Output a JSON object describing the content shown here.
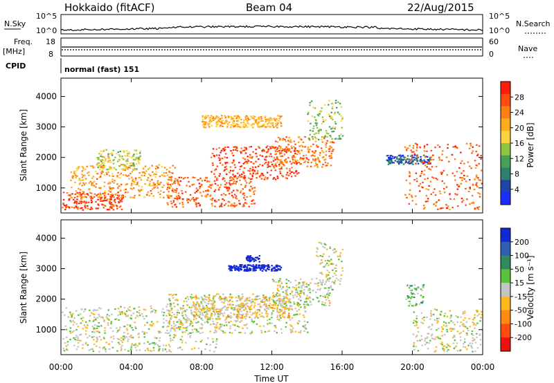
{
  "header": {
    "station": "Hokkaido (fitACF)",
    "beam": "Beam 04",
    "date": "22/Aug/2015"
  },
  "strip_panels": {
    "nsky_label": "N.Sky",
    "nsky_ticks": [
      "10^5",
      "10^0"
    ],
    "nsearch_label": "N.Search",
    "nsearch_ticks": [
      "10^5",
      "10^0"
    ],
    "freq_label_line1": "Freq.",
    "freq_label_line2": "[MHz]",
    "freq_ticks": [
      "18",
      "8"
    ],
    "nave_label": "Nave",
    "nave_ticks": [
      "60",
      "0"
    ],
    "cpid_label": "CPID",
    "cpid_text": "normal (fast) 151"
  },
  "axes": {
    "ylabel": "Slant Range [km]",
    "yticks": [
      "1000",
      "2000",
      "3000",
      "4000"
    ],
    "xlabel": "Time UT",
    "xticks": [
      "00:00",
      "04:00",
      "08:00",
      "12:00",
      "16:00",
      "20:00",
      "00:00"
    ]
  },
  "power_colorbar": {
    "label": "Power [dB]",
    "ticks": [
      "4",
      "8",
      "12",
      "16",
      "20",
      "24",
      "28"
    ],
    "colors": [
      "#1a2cff",
      "#2244aa",
      "#2f7f6e",
      "#46a05a",
      "#8cc63f",
      "#ffd23f",
      "#ffaa1a",
      "#ff7e14",
      "#ff4c10",
      "#ff1a0a"
    ]
  },
  "velocity_colorbar": {
    "label": "Velocity [m s⁻¹]",
    "ticks": [
      "200",
      "100",
      "50",
      "15",
      "-15",
      "-50",
      "-100",
      "-200"
    ],
    "colors": [
      "#1228d4",
      "#2f5fb5",
      "#2f8a60",
      "#59c23a",
      "#c4c4c4",
      "#ffb81c",
      "#ff8a12",
      "#ff4e0d",
      "#f01010"
    ]
  },
  "chart_data": [
    {
      "type": "heatmap",
      "title": "Power",
      "xlabel": "Time UT",
      "ylabel": "Slant Range [km]",
      "x_range_hours": [
        0,
        24
      ],
      "ylim": [
        180,
        4600
      ],
      "colorbar": {
        "label": "Power [dB]",
        "range": [
          0,
          32
        ]
      },
      "regions": [
        {
          "t0": 0.0,
          "t1": 3.5,
          "r0": 300,
          "r1": 900,
          "value": 28
        },
        {
          "t0": 0.5,
          "t1": 6.5,
          "r0": 700,
          "r1": 1800,
          "value": 22
        },
        {
          "t0": 6.0,
          "t1": 11.0,
          "r0": 400,
          "r1": 1400,
          "value": 26
        },
        {
          "t0": 8.5,
          "t1": 13.5,
          "r0": 1300,
          "r1": 2400,
          "value": 28
        },
        {
          "t0": 12.0,
          "t1": 15.5,
          "r0": 1700,
          "r1": 2700,
          "value": 24
        },
        {
          "t0": 14.0,
          "t1": 16.0,
          "r0": 2600,
          "r1": 3900,
          "value": 14
        },
        {
          "t0": 8.0,
          "t1": 12.5,
          "r0": 3000,
          "r1": 3400,
          "value": 20
        },
        {
          "t0": 2.0,
          "t1": 4.5,
          "r0": 1600,
          "r1": 2300,
          "value": 16
        },
        {
          "t0": 18.5,
          "t1": 21.0,
          "r0": 1800,
          "r1": 2100,
          "value": 6
        },
        {
          "t0": 19.5,
          "t1": 24.0,
          "r0": 300,
          "r1": 2500,
          "value": 26
        }
      ]
    },
    {
      "type": "heatmap",
      "title": "Velocity",
      "xlabel": "Time UT",
      "ylabel": "Slant Range [km]",
      "x_range_hours": [
        0,
        24
      ],
      "ylim": [
        180,
        4600
      ],
      "colorbar": {
        "label": "Velocity [m s⁻¹]",
        "range": [
          -200,
          200
        ]
      },
      "regions": [
        {
          "t0": 0.0,
          "t1": 9.0,
          "r0": 300,
          "r1": 1800,
          "value": 0
        },
        {
          "t0": 6.0,
          "t1": 14.0,
          "r0": 900,
          "r1": 2200,
          "value": 0
        },
        {
          "t0": 12.0,
          "t1": 15.5,
          "r0": 1800,
          "r1": 2700,
          "value": 0
        },
        {
          "t0": 14.5,
          "t1": 16.0,
          "r0": 2500,
          "r1": 3900,
          "value": 0
        },
        {
          "t0": 9.5,
          "t1": 12.5,
          "r0": 2950,
          "r1": 3150,
          "value": 250
        },
        {
          "t0": 10.5,
          "t1": 11.3,
          "r0": 3250,
          "r1": 3450,
          "value": 250
        },
        {
          "t0": 19.6,
          "t1": 20.6,
          "r0": 1800,
          "r1": 2500,
          "value": 40
        },
        {
          "t0": 20.0,
          "t1": 24.0,
          "r0": 300,
          "r1": 1700,
          "value": 0
        },
        {
          "t0": 7.5,
          "t1": 13.0,
          "r0": 1400,
          "r1": 2100,
          "value": -30
        }
      ]
    }
  ]
}
